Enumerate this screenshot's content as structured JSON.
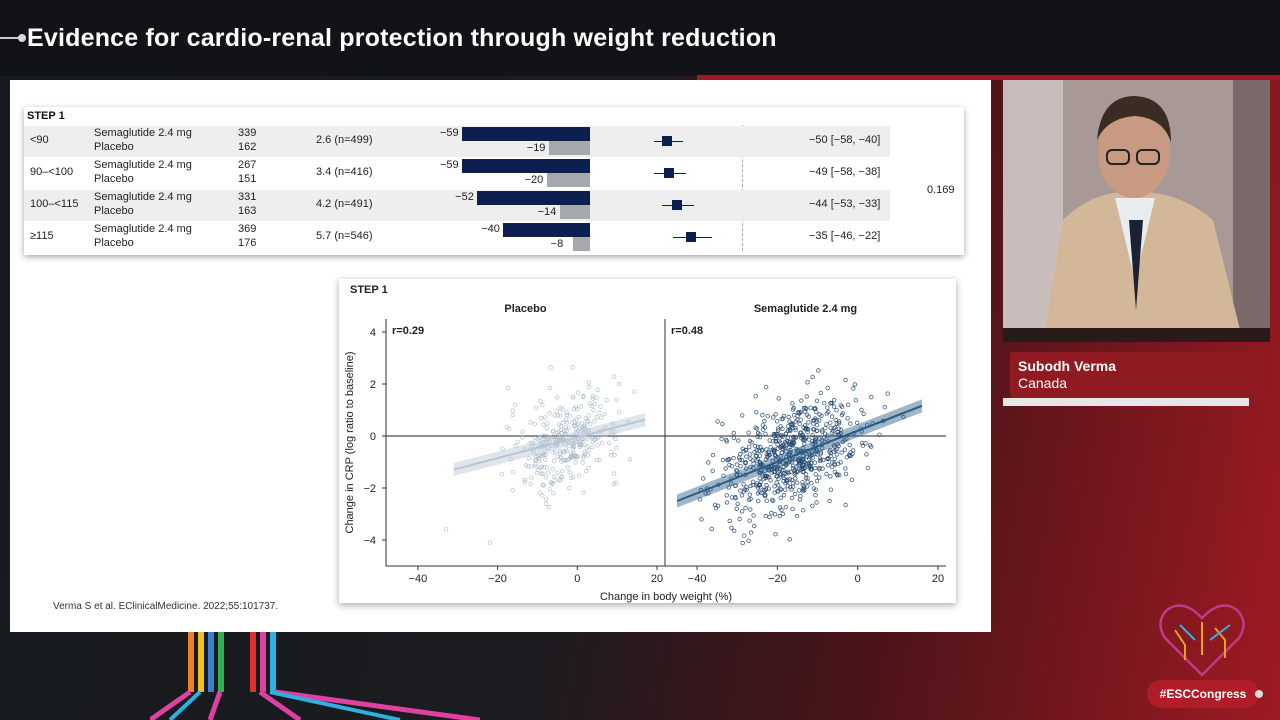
{
  "slide": {
    "title": "Evidence for cardio-renal protection through weight reduction",
    "citation": "Verma S et al. EClinicalMedicine. 2022;55:101737."
  },
  "table": {
    "step_label": "STEP 1",
    "p_value": "0.169",
    "rows": [
      {
        "group": "<90",
        "arm1": "Semaglutide 2.4 mg",
        "arm2": "Placebo",
        "n1": "339",
        "n2": "162",
        "baseline": "2.6 (n=499)",
        "sema_change": -59,
        "plac_change": -19,
        "sema_label": "−59",
        "plac_label": "−19",
        "estimate": -50,
        "ci_low": -58,
        "ci_high": -40,
        "est_label": "−50 [−58, −40]"
      },
      {
        "group": "90–<100",
        "arm1": "Semaglutide 2.4 mg",
        "arm2": "Placebo",
        "n1": "267",
        "n2": "151",
        "baseline": "3.4 (n=416)",
        "sema_change": -59,
        "plac_change": -20,
        "sema_label": "−59",
        "plac_label": "−20",
        "estimate": -49,
        "ci_low": -58,
        "ci_high": -38,
        "est_label": "−49 [−58, −38]"
      },
      {
        "group": "100–<115",
        "arm1": "Semaglutide 2.4 mg",
        "arm2": "Placebo",
        "n1": "331",
        "n2": "163",
        "baseline": "4.2 (n=491)",
        "sema_change": -52,
        "plac_change": -14,
        "sema_label": "−52",
        "plac_label": "−14",
        "estimate": -44,
        "ci_low": -53,
        "ci_high": -33,
        "est_label": "−44 [−53, −33]"
      },
      {
        "group": "≥115",
        "arm1": "Semaglutide 2.4 mg",
        "arm2": "Placebo",
        "n1": "369",
        "n2": "176",
        "baseline": "5.7 (n=546)",
        "sema_change": -40,
        "plac_change": -8,
        "sema_label": "−40",
        "plac_label": "−8",
        "estimate": -35,
        "ci_low": -46,
        "ci_high": -22,
        "est_label": "−35 [−46, −22]"
      }
    ]
  },
  "scatter": {
    "step_label": "STEP 1",
    "xlabel": "Change in body weight (%)",
    "ylabel": "Change in CRP (log ratio to baseline)",
    "xlim": [
      -48,
      22
    ],
    "ylim": [
      -5,
      4.5
    ],
    "x_ticks": [
      -40,
      -20,
      0,
      20
    ],
    "y_ticks": [
      4,
      2,
      0,
      -2,
      -4
    ],
    "x_tick_labels": [
      "−40",
      "−20",
      "0",
      "20"
    ],
    "y_tick_labels": [
      "4",
      "2",
      "0",
      "−2",
      "−4"
    ],
    "panels": [
      {
        "title": "Placebo",
        "r": "r=0.29",
        "center_x": -3,
        "center_y": -0.2,
        "spread_x": 7,
        "spread_y": 0.9,
        "slope": 0.04,
        "intercept": -0.05,
        "x_range": [
          -31,
          17
        ],
        "n_points": 320,
        "color": "#9fb0c3",
        "line_color": "#b7c6d3"
      },
      {
        "title": "Semaglutide 2.4 mg",
        "r": "r=0.48",
        "center_x": -17,
        "center_y": -0.8,
        "spread_x": 9,
        "spread_y": 1.0,
        "slope": 0.06,
        "intercept": 0.2,
        "x_range": [
          -45,
          16
        ],
        "n_points": 680,
        "color": "#1e4470",
        "line_color": "#2a5a86"
      }
    ]
  },
  "speaker": {
    "name": "Subodh Verma",
    "country": "Canada"
  },
  "hashtag": "#ESCCongress",
  "colors": {
    "semaglutide_bar": "#0d1f4f",
    "placebo_bar": "#a5a9ae",
    "brand_red": "#9b1a25"
  }
}
